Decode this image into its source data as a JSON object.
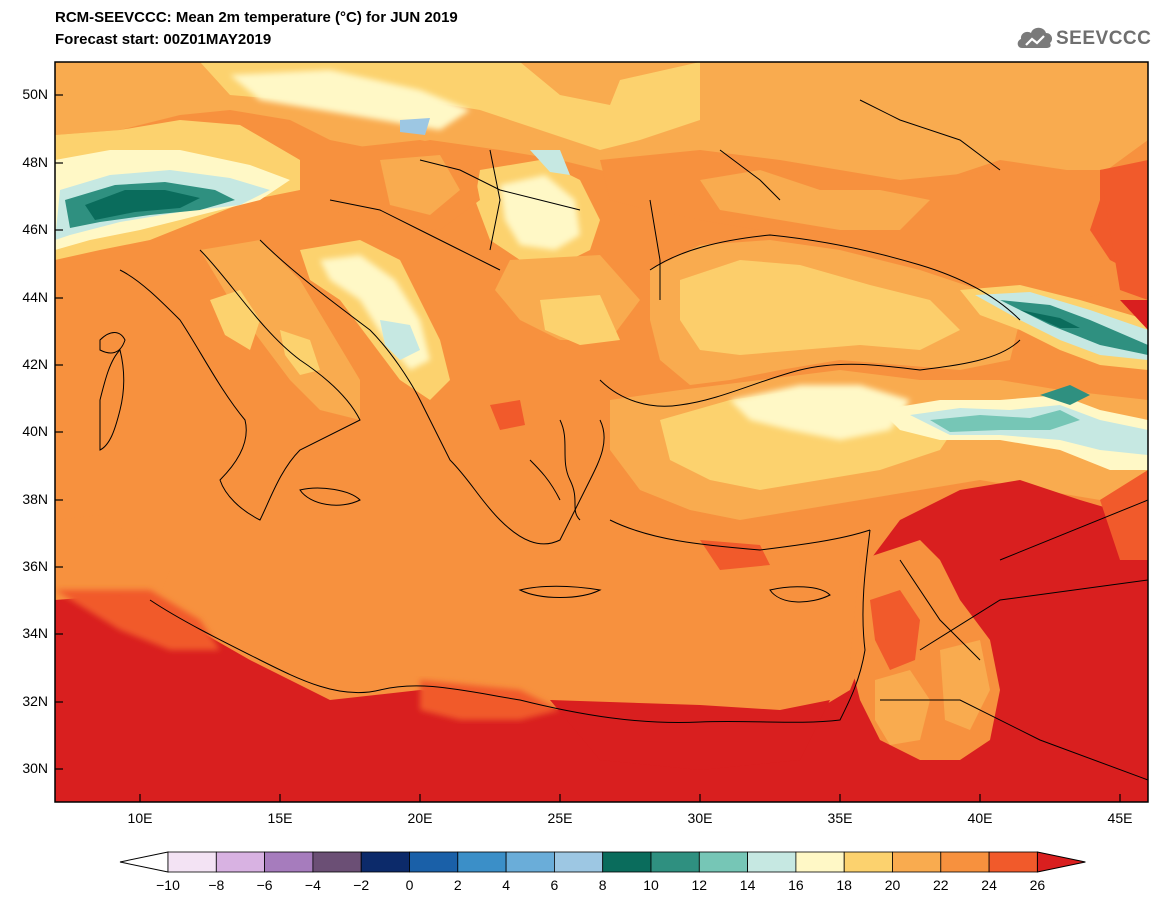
{
  "header": {
    "title_line1": "RCM-SEEVCCC: Mean 2m temperature (°C) for JUN 2019",
    "title_line2": "Forecast start: 00Z01MAY2019",
    "logo_text": "SEEVCCC",
    "logo_icon": "cloud-logo-icon"
  },
  "map": {
    "lat_ticks": [
      "50N",
      "48N",
      "46N",
      "44N",
      "42N",
      "40N",
      "38N",
      "36N",
      "34N",
      "32N",
      "30N"
    ],
    "lon_ticks": [
      "10E",
      "15E",
      "20E",
      "25E",
      "30E",
      "35E",
      "40E",
      "45E"
    ],
    "background_color": "#f7913e"
  },
  "colorbar": {
    "labels": [
      "−10",
      "−8",
      "−6",
      "−4",
      "−2",
      "0",
      "2",
      "4",
      "6",
      "8",
      "10",
      "12",
      "14",
      "16",
      "18",
      "20",
      "22",
      "24",
      "26"
    ],
    "colors": [
      "#f3e3f4",
      "#d8b2e2",
      "#a67cbd",
      "#6b4f75",
      "#0c2a6a",
      "#1a60a8",
      "#3b8fc8",
      "#6aadd9",
      "#9dc7e3",
      "#0a6c5c",
      "#2f9080",
      "#76c6b6",
      "#c6e8e2",
      "#fff8c6",
      "#fcd26e",
      "#f9ab4f",
      "#f7913e",
      "#f15a2b"
    ],
    "left_extend_color": "#ffffff",
    "right_extend_color": "#d91f1f"
  }
}
